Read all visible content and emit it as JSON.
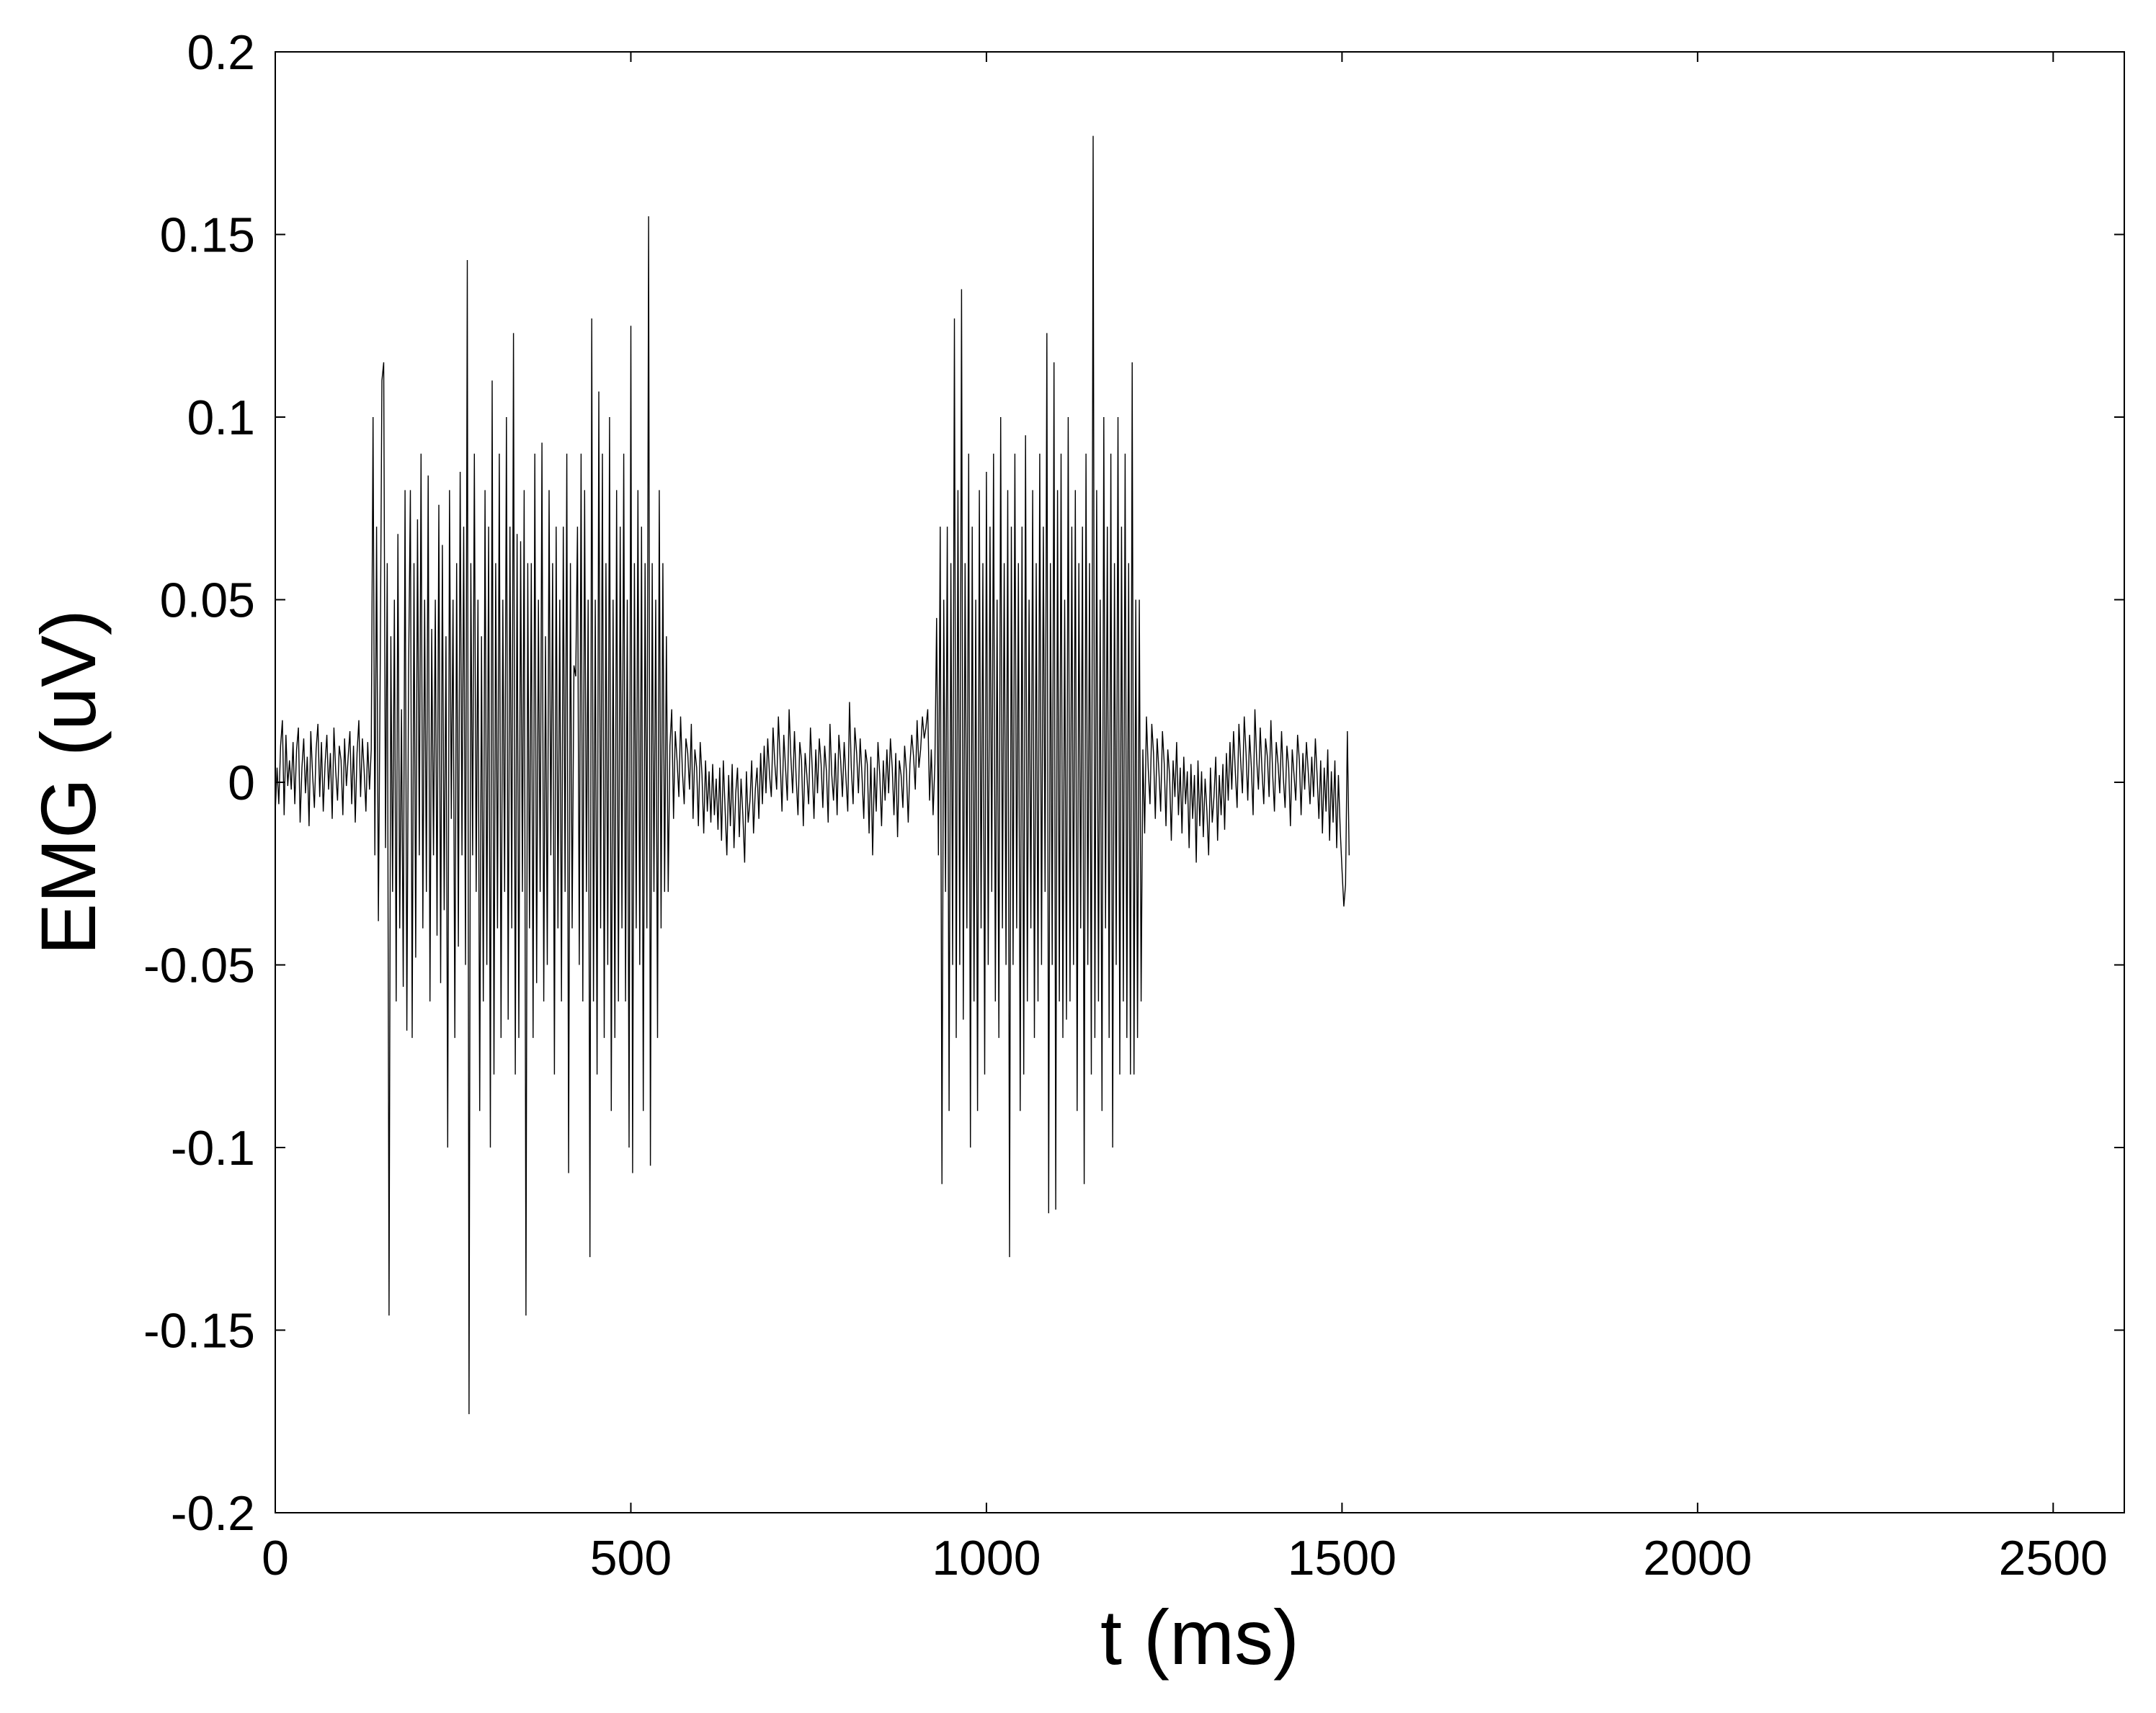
{
  "chart_data": {
    "type": "line",
    "title": "",
    "xlabel": "t (ms)",
    "ylabel": "EMG (uV)",
    "xlim": [
      0,
      2600
    ],
    "ylim": [
      -0.2,
      0.2
    ],
    "xticks": [
      0,
      500,
      1000,
      1500,
      2000,
      2500
    ],
    "xtick_labels": [
      "0",
      "500",
      "1000",
      "1500",
      "2000",
      "2500"
    ],
    "yticks": [
      0.2,
      0.15,
      0.1,
      0.05,
      0,
      -0.05,
      -0.1,
      -0.15,
      -0.2
    ],
    "ytick_labels": [
      "0.2",
      "0.15",
      "0.1",
      "0.05",
      "0",
      "-0.05",
      "-0.1",
      "-0.15",
      "-0.2"
    ],
    "grid": false,
    "legend": "none",
    "line_color": "#000000",
    "series": [
      {
        "x_start": 0,
        "x_step": 2.5,
        "values": [
          -0.008,
          0.004,
          -0.006,
          0.01,
          0.017,
          -0.009,
          0.013,
          -0.001,
          0.006,
          -0.002,
          0.011,
          -0.006,
          0.009,
          0.015,
          -0.011,
          0.004,
          0.012,
          -0.003,
          0.007,
          -0.012,
          0.014,
          0.002,
          -0.007,
          0.009,
          0.016,
          -0.004,
          0.011,
          -0.008,
          0.005,
          0.013,
          -0.002,
          0.008,
          -0.01,
          0.015,
          0.003,
          -0.005,
          0.01,
          0.006,
          -0.009,
          0.012,
          -0.001,
          0.007,
          0.014,
          -0.006,
          0.01,
          -0.011,
          0.008,
          0.017,
          -0.004,
          0.012,
          0.003,
          -0.008,
          0.011,
          -0.002,
          0.009,
          0.1,
          -0.02,
          0.07,
          -0.038,
          0.03,
          0.11,
          0.115,
          -0.018,
          0.06,
          -0.146,
          0.04,
          -0.03,
          0.05,
          -0.06,
          0.068,
          -0.04,
          0.02,
          -0.056,
          0.08,
          -0.068,
          0.03,
          0.08,
          -0.07,
          0.06,
          -0.048,
          0.072,
          -0.02,
          0.09,
          -0.04,
          0.05,
          -0.03,
          0.084,
          -0.06,
          0.042,
          -0.02,
          0.05,
          -0.042,
          0.076,
          -0.055,
          0.065,
          -0.035,
          0.04,
          -0.1,
          0.08,
          -0.01,
          0.05,
          -0.07,
          0.06,
          -0.045,
          0.085,
          -0.02,
          0.07,
          -0.05,
          0.143,
          -0.173,
          0.06,
          -0.02,
          0.09,
          -0.03,
          0.05,
          -0.09,
          0.04,
          -0.06,
          0.08,
          -0.05,
          0.07,
          -0.1,
          0.11,
          -0.08,
          0.06,
          -0.04,
          0.09,
          -0.07,
          0.05,
          -0.03,
          0.1,
          -0.065,
          0.07,
          -0.04,
          0.123,
          -0.08,
          0.068,
          -0.07,
          0.066,
          -0.03,
          0.08,
          -0.146,
          0.06,
          -0.04,
          0.06,
          -0.07,
          0.09,
          -0.055,
          0.05,
          -0.03,
          0.093,
          -0.06,
          0.04,
          -0.05,
          0.08,
          -0.02,
          0.06,
          -0.08,
          0.07,
          -0.04,
          0.05,
          -0.06,
          0.07,
          -0.03,
          0.09,
          -0.107,
          0.06,
          -0.04,
          0.032,
          0.029,
          0.07,
          -0.05,
          0.09,
          -0.06,
          0.08,
          -0.03,
          0.05,
          -0.13,
          0.127,
          -0.06,
          0.05,
          -0.08,
          0.107,
          -0.04,
          0.09,
          -0.07,
          0.06,
          -0.05,
          0.1,
          -0.09,
          0.05,
          -0.07,
          0.08,
          -0.06,
          0.07,
          -0.04,
          0.09,
          -0.06,
          0.05,
          -0.1,
          0.125,
          -0.107,
          0.06,
          -0.04,
          0.08,
          -0.05,
          0.07,
          -0.09,
          0.06,
          -0.04,
          0.155,
          -0.105,
          0.06,
          -0.03,
          0.05,
          -0.07,
          0.08,
          -0.04,
          0.06,
          -0.03,
          0.04,
          -0.03,
          0.01,
          0.02,
          -0.01,
          0.014,
          0.006,
          -0.004,
          0.018,
          0.003,
          -0.006,
          0.012,
          0.008,
          -0.002,
          0.016,
          -0.01,
          0.009,
          0.004,
          -0.012,
          0.011,
          0.002,
          -0.014,
          0.006,
          -0.008,
          0.003,
          -0.011,
          0.005,
          -0.009,
          0.001,
          -0.013,
          0.004,
          -0.016,
          0.006,
          -0.007,
          -0.02,
          0.002,
          -0.012,
          0.005,
          -0.018,
          -0.003,
          0.004,
          -0.015,
          0.001,
          -0.009,
          -0.022,
          0.003,
          -0.011,
          -0.005,
          0.006,
          -0.014,
          -0.002,
          0.004,
          -0.01,
          0.008,
          -0.006,
          0.01,
          -0.003,
          0.012,
          0.002,
          -0.004,
          0.015,
          0.005,
          -0.002,
          0.018,
          0.006,
          -0.008,
          0.013,
          0.004,
          -0.005,
          0.02,
          0.007,
          -0.003,
          0.014,
          0.001,
          -0.009,
          0.011,
          0.006,
          -0.012,
          0.008,
          0.002,
          -0.006,
          0.015,
          0.004,
          -0.01,
          0.009,
          -0.003,
          0.012,
          0.005,
          -0.007,
          0.01,
          0.003,
          -0.011,
          0.016,
          0.002,
          -0.005,
          0.008,
          -0.009,
          0.013,
          0.006,
          -0.004,
          0.011,
          0.001,
          -0.008,
          0.022,
          0.004,
          -0.006,
          0.015,
          0.008,
          -0.003,
          0.012,
          0.002,
          -0.01,
          0.009,
          0.005,
          -0.014,
          0.007,
          -0.02,
          0.004,
          -0.008,
          0.011,
          0.002,
          -0.012,
          0.006,
          -0.005,
          0.009,
          -0.003,
          0.012,
          0.004,
          -0.009,
          0.008,
          -0.015,
          0.006,
          0.002,
          -0.007,
          0.01,
          0.003,
          -0.011,
          0.005,
          0.013,
          0.007,
          -0.002,
          0.017,
          0.004,
          0.009,
          0.018,
          0.012,
          0.015,
          0.02,
          -0.005,
          0.009,
          -0.009,
          0.005,
          0.045,
          -0.02,
          0.07,
          -0.11,
          0.05,
          -0.03,
          0.07,
          -0.09,
          0.06,
          -0.05,
          0.127,
          -0.07,
          0.08,
          -0.05,
          0.135,
          -0.065,
          0.06,
          -0.04,
          0.09,
          -0.1,
          0.07,
          -0.06,
          0.05,
          -0.09,
          0.08,
          -0.04,
          0.06,
          -0.08,
          0.085,
          -0.05,
          0.07,
          -0.03,
          0.09,
          -0.06,
          0.05,
          -0.07,
          0.1,
          -0.04,
          0.06,
          -0.05,
          0.08,
          -0.13,
          0.07,
          -0.05,
          0.09,
          -0.04,
          0.06,
          -0.09,
          0.07,
          -0.08,
          0.095,
          -0.06,
          0.05,
          -0.04,
          0.08,
          -0.07,
          0.06,
          -0.06,
          0.09,
          -0.05,
          0.07,
          -0.03,
          0.123,
          -0.118,
          0.06,
          -0.05,
          0.115,
          -0.117,
          0.08,
          -0.06,
          0.09,
          -0.07,
          0.05,
          -0.065,
          0.1,
          -0.06,
          0.07,
          -0.05,
          0.08,
          -0.09,
          0.06,
          -0.04,
          0.07,
          -0.11,
          0.09,
          -0.05,
          0.06,
          -0.08,
          0.177,
          -0.07,
          0.08,
          -0.06,
          0.05,
          -0.09,
          0.1,
          -0.04,
          0.07,
          -0.07,
          0.09,
          -0.1,
          0.06,
          -0.05,
          0.1,
          -0.08,
          0.07,
          -0.06,
          0.09,
          -0.07,
          0.06,
          -0.08,
          0.115,
          -0.08,
          0.05,
          -0.07,
          0.05,
          -0.06,
          0.009,
          -0.014,
          0.018,
          0.004,
          -0.006,
          0.016,
          0.008,
          -0.01,
          0.012,
          0.003,
          -0.008,
          0.014,
          0.005,
          -0.012,
          0.009,
          0.002,
          -0.016,
          0.006,
          -0.004,
          0.011,
          -0.009,
          0.004,
          -0.014,
          0.007,
          -0.006,
          0.003,
          -0.018,
          0.005,
          -0.01,
          0.002,
          -0.022,
          0.006,
          -0.012,
          0.003,
          -0.015,
          0.001,
          -0.008,
          -0.02,
          0.004,
          -0.011,
          -0.004,
          0.007,
          -0.016,
          0.002,
          -0.009,
          0.005,
          -0.013,
          0.008,
          -0.005,
          0.011,
          -0.002,
          0.014,
          0.003,
          -0.007,
          0.016,
          0.006,
          -0.003,
          0.018,
          0.008,
          -0.005,
          0.013,
          0.004,
          -0.009,
          0.02,
          0.006,
          -0.002,
          0.015,
          0.003,
          -0.006,
          0.012,
          0.007,
          -0.004,
          0.017,
          0.002,
          -0.008,
          0.011,
          0.005,
          -0.003,
          0.014,
          0.001,
          -0.007,
          0.01,
          0.004,
          -0.012,
          0.009,
          0.002,
          -0.005,
          0.013,
          0.006,
          -0.009,
          0.008,
          -0.002,
          0.011,
          0.003,
          -0.006,
          0.007,
          -0.004,
          0.012,
          0.002,
          -0.01,
          0.006,
          -0.014,
          0.004,
          -0.008,
          0.009,
          -0.016,
          0.003,
          -0.011,
          0.006,
          -0.018,
          0.002,
          -0.013,
          -0.024,
          -0.034,
          -0.028,
          0.014,
          -0.02
        ]
      }
    ]
  }
}
